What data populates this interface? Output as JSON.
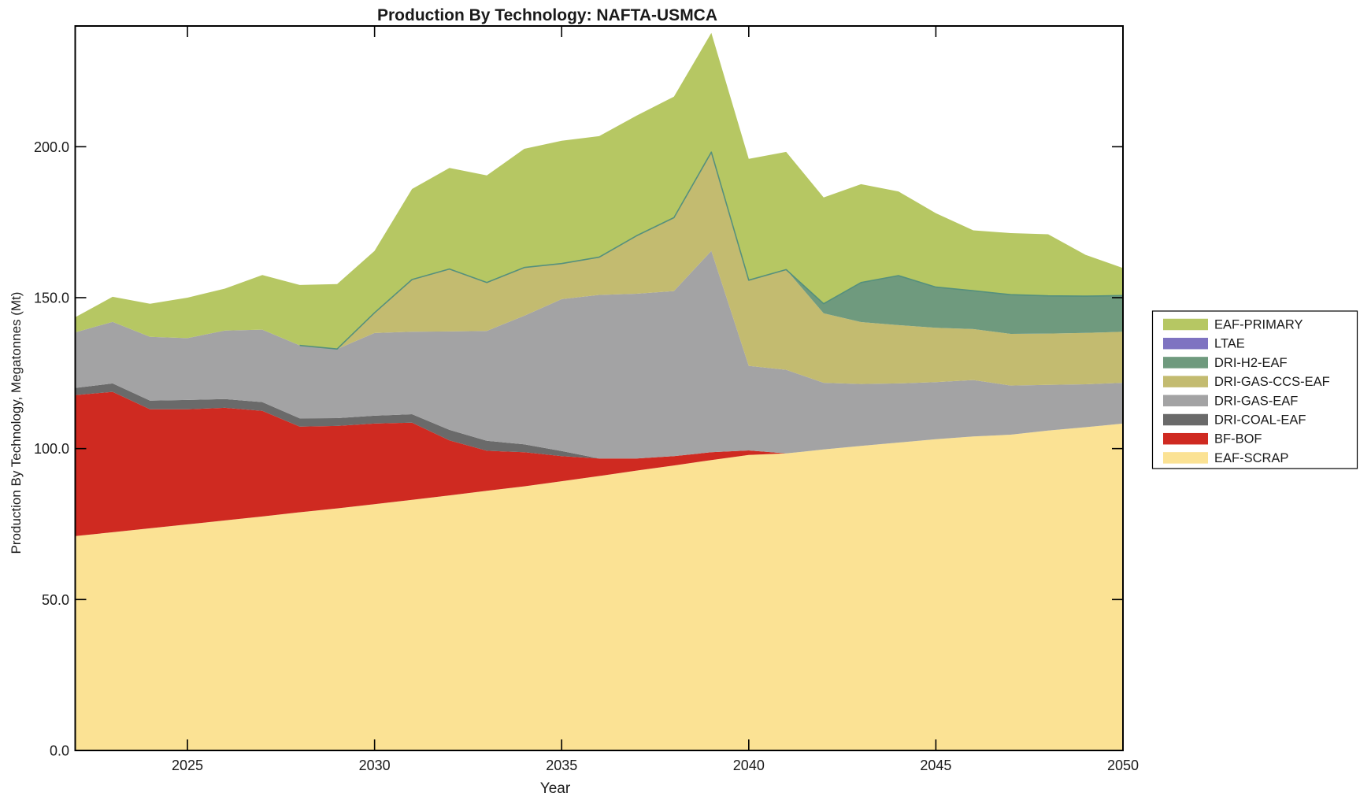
{
  "figure": {
    "background": "#ffffff",
    "axis_color": "#000000",
    "text_color": "#1a1a1a"
  },
  "chart_data": {
    "type": "area",
    "stacked": true,
    "title": "Production By Technology: NAFTA-USMCA",
    "xlabel": "Year",
    "ylabel": "Production By Technology, Megatonnes (Mt)",
    "xlim": [
      2022,
      2050
    ],
    "ylim": [
      0,
      240
    ],
    "grid": false,
    "legend_position": "right-outside",
    "x_tick_labels": [
      "2025",
      "2030",
      "2035",
      "2040",
      "2045",
      "2050"
    ],
    "x_tick_values": [
      2025,
      2030,
      2035,
      2040,
      2045,
      2050
    ],
    "y_tick_labels": [
      "0.0",
      "50.0",
      "100.0",
      "150.0",
      "200.0"
    ],
    "y_tick_values": [
      0,
      50,
      100,
      150,
      200
    ],
    "x": [
      2022,
      2023,
      2024,
      2025,
      2026,
      2027,
      2028,
      2029,
      2030,
      2031,
      2032,
      2033,
      2034,
      2035,
      2036,
      2037,
      2038,
      2039,
      2040,
      2041,
      2042,
      2043,
      2044,
      2045,
      2046,
      2047,
      2048,
      2049,
      2050
    ],
    "series_order": "bottom_to_top",
    "series": [
      {
        "name": "EAF-SCRAP",
        "color": "#fbe294",
        "values": [
          71.0,
          72.3,
          73.6,
          74.9,
          76.2,
          77.5,
          78.9,
          80.2,
          81.6,
          83.0,
          84.5,
          86.0,
          87.5,
          89.2,
          90.9,
          92.7,
          94.4,
          96.2,
          97.9,
          98.4,
          99.7,
          100.9,
          102.0,
          103.1,
          104.0,
          104.6,
          106.0,
          107.1,
          108.3
        ]
      },
      {
        "name": "BF-BOF",
        "color": "#cf2a21",
        "values": [
          46.7,
          46.5,
          39.4,
          38.1,
          37.3,
          35.0,
          28.4,
          27.3,
          26.7,
          25.6,
          18.2,
          13.3,
          11.3,
          8.3,
          5.8,
          4.0,
          3.1,
          2.6,
          1.5,
          0,
          0,
          0,
          0,
          0,
          0,
          0,
          0,
          0,
          0
        ]
      },
      {
        "name": "DRI-COAL-EAF",
        "color": "#6a6a6a",
        "values": [
          2.4,
          2.8,
          2.9,
          3.1,
          2.9,
          2.9,
          2.7,
          2.6,
          2.6,
          2.8,
          3.5,
          3.3,
          2.6,
          1.7,
          0,
          0,
          0,
          0,
          0,
          0,
          0,
          0,
          0,
          0,
          0,
          0,
          0,
          0,
          0
        ]
      },
      {
        "name": "DRI-GAS-EAF",
        "color": "#a3a3a4",
        "values": [
          18.4,
          20.4,
          21.1,
          20.5,
          22.7,
          24.0,
          24.2,
          22.9,
          27.4,
          27.3,
          32.6,
          36.4,
          42.6,
          50.3,
          54.2,
          54.6,
          54.7,
          66.7,
          28.0,
          27.7,
          22.1,
          20.5,
          19.6,
          18.9,
          18.7,
          16.3,
          15.1,
          14.2,
          13.5
        ]
      },
      {
        "name": "DRI-GAS-CCS-EAF",
        "color": "#c3bb70",
        "values": [
          0,
          0,
          0,
          0,
          0,
          0,
          0,
          0,
          6.7,
          17.3,
          20.7,
          16.0,
          16.0,
          11.8,
          12.5,
          19.2,
          24.3,
          32.7,
          28.4,
          33.2,
          23.0,
          20.5,
          19.3,
          18.0,
          16.9,
          17.1,
          17.0,
          17.0,
          16.9
        ]
      },
      {
        "name": "DRI-H2-EAF",
        "color": "#6f9a7e",
        "edge_color": "#55907d",
        "edge_visible_from": 2028,
        "values": [
          0,
          0,
          0,
          0,
          0,
          0,
          0,
          0,
          0,
          0,
          0,
          0,
          0,
          0,
          0,
          0,
          0,
          0,
          0,
          0,
          3.2,
          13.1,
          16.4,
          13.5,
          12.7,
          13.0,
          12.5,
          12.2,
          12.0
        ]
      },
      {
        "name": "LTAE",
        "color": "#7e73c1",
        "values": [
          0,
          0,
          0,
          0,
          0,
          0,
          0,
          0,
          0,
          0,
          0,
          0,
          0,
          0,
          0,
          0,
          0,
          0,
          0,
          0,
          0,
          0,
          0,
          0,
          0,
          0,
          0,
          0,
          0
        ]
      },
      {
        "name": "EAF-PRIMARY",
        "color": "#b6c763",
        "values": [
          5.0,
          8.3,
          11.0,
          13.4,
          13.9,
          18.1,
          20.0,
          21.5,
          20.5,
          30.0,
          33.5,
          35.5,
          39.3,
          40.7,
          40.1,
          39.8,
          40.1,
          39.5,
          40.2,
          39.0,
          35.2,
          32.6,
          27.9,
          24.5,
          20.0,
          20.4,
          20.4,
          13.7,
          9.1
        ]
      }
    ],
    "legend_entries_top_to_bottom": [
      "EAF-PRIMARY",
      "LTAE",
      "DRI-H2-EAF",
      "DRI-GAS-CCS-EAF",
      "DRI-GAS-EAF",
      "DRI-COAL-EAF",
      "BF-BOF",
      "EAF-SCRAP"
    ]
  }
}
